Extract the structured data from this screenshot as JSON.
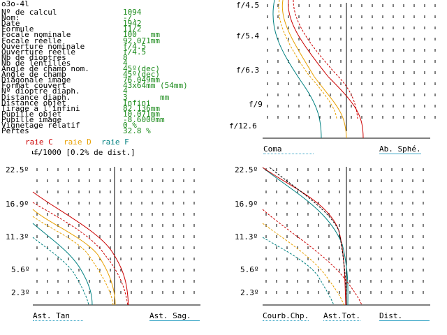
{
  "title": "o3o-4l",
  "params": [
    {
      "label": "Nº de calcul",
      "value": "1094"
    },
    {
      "label": "Nom:",
      "value": "-/."
    },
    {
      "label": "Date",
      "value": "1942"
    },
    {
      "label": "Formule",
      "value": "11/2"
    },
    {
      "label": "Focale nominale",
      "value": "100   mm"
    },
    {
      "label": "Focale réelle",
      "value": "92.071mm"
    },
    {
      "label": "Ouverture nominale",
      "value": "f/4.5"
    },
    {
      "label": "Ouverture réelle",
      "value": "f/4.5"
    },
    {
      "label": "Nb de dioptres",
      "value": "8"
    },
    {
      "label": "Nb de lentilles",
      "value": "4"
    },
    {
      "label": "Angle de champ nom.",
      "value": "45º(dec)"
    },
    {
      "label": "Angle de champ",
      "value": "45º(dec)"
    },
    {
      "label": "Diagonale image",
      "value": "76.049mm"
    },
    {
      "label": "Format couvert",
      "value": "43x64mm (54mm)"
    },
    {
      "label": "Nº dioptre diaph.",
      "value": "4"
    },
    {
      "label": "Distance diaph.",
      "value": "3       mm"
    },
    {
      "label": "Distance objet",
      "value": "Infini"
    },
    {
      "label": "Tirage à l'infini",
      "value": "82.136mm"
    },
    {
      "label": "Pupille objet",
      "value": "10.071mm"
    },
    {
      "label": "Pupille image",
      "value": "-8.6000mm"
    },
    {
      "label": "Vignetage relatif",
      "value": "0 %"
    },
    {
      "label": "Pertes",
      "value": "32.8 %"
    }
  ],
  "legend": {
    "raie_c": "raie C",
    "raie_d": "raie D",
    "raie_f": "raie F",
    "scale_note": "f/1000 [0.2% de dist.]"
  },
  "colors": {
    "raie_c": "#cc0000",
    "raie_d": "#e8a000",
    "raie_f": "#008080",
    "green": "#1a8a1a",
    "accent_cyan": "#3aa6c6"
  },
  "coma_panel": {
    "y_ticks": [
      "f/4.5",
      "f/5.4",
      "f/6.3",
      "f/9",
      "f/12.6"
    ],
    "label_left": "Coma",
    "label_right": "Ab. Sphé."
  },
  "ast_panel": {
    "y_ticks": [
      "22.5º",
      "16.9º",
      "11.3º",
      "5.6º",
      "2.3º"
    ],
    "label_left": "Ast. Tan",
    "label_right": "Ast. Sag."
  },
  "curv_panel": {
    "y_ticks": [
      "22.5º",
      "16.9º",
      "11.3º",
      "5.6º",
      "2.3º"
    ],
    "label_1": "Courb.Chp.",
    "label_2": "Ast.Tot.",
    "label_3": "Dist."
  }
}
